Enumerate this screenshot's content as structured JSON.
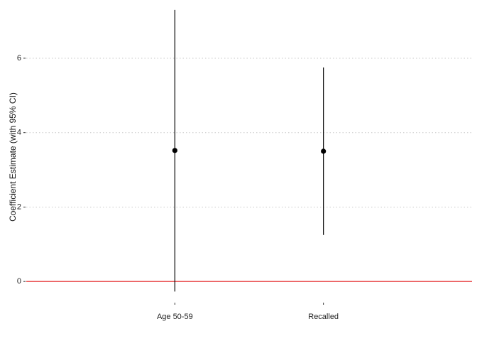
{
  "chart_data": {
    "type": "scatter",
    "title": "",
    "xlabel": "",
    "ylabel": "Coefficient Estimate (with 95% CI)",
    "categories": [
      "Age 50-59",
      "Recalled"
    ],
    "series": [
      {
        "estimate": [
          3.52,
          3.5
        ],
        "ci_low": [
          -0.27,
          1.25
        ],
        "ci_high": [
          7.3,
          5.75
        ]
      }
    ],
    "ylim": [
      -0.55,
      7.45
    ],
    "yticks": [
      0,
      2,
      4,
      6
    ],
    "grid": "horizontal dotted",
    "reference_line": {
      "y": 0,
      "color": "#e31a1c"
    },
    "point_color": "#000000",
    "errorbar_color": "#000000"
  }
}
